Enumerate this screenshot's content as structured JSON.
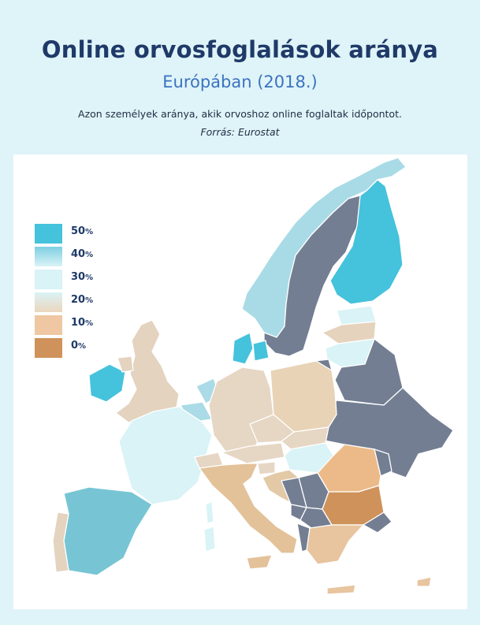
{
  "header": {
    "title": "Online orvosfoglalások aránya",
    "subtitle": "Európában (2018.)",
    "description": "Azon személyek aránya, akik orvoshoz online foglaltak időpontot.",
    "source": "Forrás: Eurostat"
  },
  "legend": {
    "unit": "%",
    "items": [
      {
        "label": "50",
        "value": 50,
        "color": "#45c2dc"
      },
      {
        "label": "40",
        "value": 40,
        "color": "#8fd4e4"
      },
      {
        "label": "30",
        "value": 30,
        "color": "#d9f3f6"
      },
      {
        "label": "20",
        "value": 20,
        "color": "#e6d6c4"
      },
      {
        "label": "10",
        "value": 10,
        "color": "#efc7a2"
      },
      {
        "label": "0",
        "value": 0,
        "color": "#cf925a"
      }
    ]
  },
  "colors": {
    "no_data": "#737e92",
    "page_background": "#dff4f8",
    "map_background": "#ffffff",
    "title": "#1f3a68",
    "subtitle": "#3c72c0"
  },
  "regions": {
    "norway": "#a8dbe6",
    "sweden": "#737e92",
    "finland": "#45c2dc",
    "denmark": "#45c2dc",
    "estonia": "#d9f3f6",
    "latvia": "#e6d3bd",
    "lithuania": "#d9f3f6",
    "belarus": "#737e92",
    "ukraine": "#737e92",
    "russia_kaliningrad": "#737e92",
    "ireland": "#45c2dc",
    "united_kingdom": "#e3d3bf",
    "netherlands": "#aadbe6",
    "belgium": "#aadbe6",
    "luxembourg": "#e3d3bf",
    "france": "#d9f3f6",
    "germany": "#e6d6c4",
    "poland": "#e8d3b6",
    "czechia": "#e6d6c4",
    "slovakia": "#e6d6c4",
    "austria": "#e6d6c4",
    "switzerland": "#e6d6c4",
    "hungary": "#d9f3f6",
    "slovenia": "#e6d6c4",
    "croatia": "#e3c9a6",
    "italy": "#e3c29a",
    "sicily": "#e3c29a",
    "sardinia": "#d9f3f6",
    "corsica": "#d9f3f6",
    "spain": "#77c5d4",
    "portugal": "#e3d3bf",
    "romania": "#ecba88",
    "bulgaria": "#cf925a",
    "moldova": "#737e92",
    "serbia": "#737e92",
    "bosnia": "#737e92",
    "montenegro": "#737e92",
    "north_macedonia": "#737e92",
    "albania": "#737e92",
    "kosovo": "#737e92",
    "greece": "#e8c49f",
    "crete": "#e8c49f",
    "turkey": "#737e92",
    "cyprus": "#e8c49f"
  }
}
